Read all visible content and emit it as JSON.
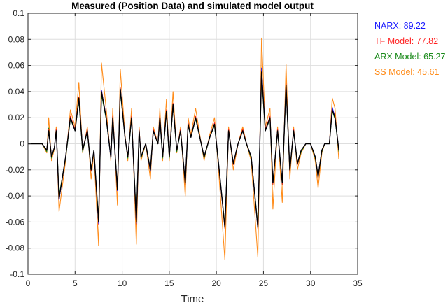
{
  "chart_data": {
    "type": "line",
    "title": "Measured (Position Data) and simulated model output",
    "xlabel": "Time",
    "ylabel": "",
    "xlim": [
      0,
      35
    ],
    "ylim": [
      -0.1,
      0.1
    ],
    "xticks": [
      "0",
      "5",
      "10",
      "15",
      "20",
      "25",
      "30",
      "35"
    ],
    "yticks": [
      "0.1",
      "0.08",
      "0.06",
      "0.04",
      "0.02",
      "0",
      "-0.02",
      "-0.04",
      "-0.06",
      "-0.08",
      "-0.1"
    ],
    "grid": true,
    "legend_placement": "outside-right",
    "t": [
      0,
      1.5,
      2,
      2.2,
      2.5,
      2.8,
      3,
      3.3,
      4,
      4.5,
      5,
      5.4,
      5.8,
      6.3,
      6.7,
      7,
      7.5,
      7.8,
      8.3,
      8.8,
      9,
      9.5,
      9.8,
      10.3,
      10.6,
      11,
      11.5,
      11.8,
      12,
      12.5,
      13,
      13.3,
      13.8,
      14,
      14.3,
      14.7,
      15,
      15.4,
      15.8,
      16.2,
      16.7,
      17,
      17.3,
      17.8,
      18.3,
      18.7,
      19.3,
      19.8,
      20.3,
      20.9,
      21.3,
      21.8,
      22.3,
      22.8,
      23.2,
      23.7,
      24.4,
      24.8,
      25.2,
      25.7,
      26,
      26.5,
      27,
      27.4,
      27.8,
      28.2,
      28.6,
      29,
      29.5,
      30,
      30.5,
      30.8,
      31.2,
      31.5,
      32,
      32.3,
      32.6,
      33
    ],
    "series": [
      {
        "name": "SS Model",
        "legend": "SS Model: 45.61",
        "color": "#ff8c1a",
        "values": [
          0,
          0,
          -0.007,
          0.02,
          -0.013,
          -0.004,
          0.013,
          -0.052,
          -0.013,
          0.026,
          0.013,
          0.047,
          -0.007,
          0.013,
          -0.027,
          -0.007,
          -0.078,
          0.062,
          0.027,
          -0.013,
          0.027,
          -0.047,
          0.057,
          0.007,
          -0.013,
          0.027,
          -0.077,
          0.013,
          -0.013,
          0,
          -0.027,
          0.013,
          0,
          0.027,
          -0.013,
          0.034,
          -0.013,
          0.04,
          -0.007,
          0.013,
          -0.04,
          0.02,
          0.007,
          0.027,
          0.004,
          -0.013,
          0.007,
          0.02,
          -0.027,
          -0.089,
          0.013,
          -0.02,
          0,
          0.013,
          0,
          -0.013,
          -0.087,
          0.081,
          0.013,
          0.027,
          -0.05,
          0.013,
          -0.045,
          0.061,
          -0.027,
          0.013,
          -0.02,
          -0.007,
          0,
          0,
          -0.013,
          -0.034,
          -0.007,
          0,
          0,
          0.035,
          0.027,
          -0.012
        ]
      },
      {
        "name": "ARX Model",
        "legend": "ARX Model: 65.27",
        "color": "#1a8a1a",
        "values": [
          0,
          0,
          -0.006,
          0.012,
          -0.011,
          -0.003,
          0.011,
          -0.04,
          -0.011,
          0.019,
          0.01,
          0.033,
          -0.006,
          0.01,
          -0.021,
          -0.006,
          -0.058,
          0.038,
          0.019,
          -0.011,
          0.019,
          -0.034,
          0.04,
          0.005,
          -0.011,
          0.019,
          -0.058,
          0.01,
          -0.011,
          0,
          -0.021,
          0.01,
          0,
          0.019,
          -0.011,
          0.024,
          -0.011,
          0.029,
          -0.006,
          0.01,
          -0.031,
          0.014,
          0.005,
          0.019,
          0.003,
          -0.011,
          0.005,
          0.014,
          -0.021,
          -0.062,
          0.01,
          -0.016,
          0,
          0.01,
          0,
          -0.011,
          -0.062,
          0.052,
          0.01,
          0.019,
          -0.031,
          0.01,
          -0.031,
          0.043,
          -0.021,
          0.01,
          -0.016,
          -0.006,
          0,
          0,
          -0.011,
          -0.026,
          -0.006,
          0,
          0,
          0.025,
          0.019,
          -0.006
        ]
      },
      {
        "name": "TF Model",
        "legend": "TF Model: 77.82",
        "color": "#ff2020",
        "values": [
          0,
          0,
          -0.005,
          0.011,
          -0.01,
          -0.003,
          0.011,
          -0.043,
          -0.01,
          0.021,
          0.011,
          0.036,
          -0.005,
          0.011,
          -0.021,
          -0.005,
          -0.062,
          0.041,
          0.021,
          -0.01,
          0.021,
          -0.036,
          0.043,
          0.005,
          -0.01,
          0.021,
          -0.062,
          0.011,
          -0.01,
          0,
          -0.021,
          0.011,
          0,
          0.021,
          -0.01,
          0.026,
          -0.01,
          0.031,
          -0.005,
          0.011,
          -0.031,
          0.016,
          0.005,
          0.021,
          0.003,
          -0.01,
          0.005,
          0.016,
          -0.021,
          -0.065,
          0.011,
          -0.016,
          0,
          0.011,
          0,
          -0.01,
          -0.065,
          0.056,
          0.011,
          0.021,
          -0.031,
          0.011,
          -0.031,
          0.046,
          -0.021,
          0.011,
          -0.016,
          -0.005,
          0,
          0,
          -0.01,
          -0.026,
          -0.005,
          0,
          0,
          0.027,
          0.021,
          -0.005
        ]
      },
      {
        "name": "NARX",
        "legend": "NARX: 89.22",
        "color": "#1a1aff",
        "values": [
          0,
          0,
          -0.005,
          0.01,
          -0.01,
          -0.003,
          0.01,
          -0.043,
          -0.01,
          0.02,
          0.01,
          0.035,
          -0.005,
          0.01,
          -0.02,
          -0.005,
          -0.061,
          0.041,
          0.02,
          -0.011,
          0.02,
          -0.036,
          0.042,
          0.005,
          -0.01,
          0.02,
          -0.061,
          0.01,
          -0.01,
          0,
          -0.021,
          0.01,
          0,
          0.02,
          -0.01,
          0.025,
          -0.01,
          0.03,
          -0.005,
          0.01,
          -0.03,
          0.015,
          0.005,
          0.02,
          0.003,
          -0.01,
          0.005,
          0.015,
          -0.02,
          -0.064,
          0.01,
          -0.015,
          0,
          0.01,
          0,
          -0.01,
          -0.064,
          0.058,
          0.01,
          0.02,
          -0.03,
          0.01,
          -0.03,
          0.045,
          -0.02,
          0.01,
          -0.015,
          -0.005,
          0,
          0,
          -0.01,
          -0.025,
          -0.005,
          0,
          0,
          0.028,
          0.02,
          -0.005
        ]
      },
      {
        "name": "Measured",
        "legend": "",
        "color": "#000000",
        "values": [
          0,
          0,
          -0.005,
          0.01,
          -0.01,
          -0.003,
          0.01,
          -0.042,
          -0.01,
          0.02,
          0.01,
          0.035,
          -0.005,
          0.01,
          -0.02,
          -0.005,
          -0.06,
          0.04,
          0.02,
          -0.01,
          0.02,
          -0.035,
          0.042,
          0.005,
          -0.01,
          0.02,
          -0.06,
          0.01,
          -0.01,
          0,
          -0.02,
          0.01,
          0,
          0.02,
          -0.01,
          0.025,
          -0.01,
          0.03,
          -0.005,
          0.01,
          -0.03,
          0.015,
          0.005,
          0.02,
          0.003,
          -0.01,
          0.005,
          0.015,
          -0.02,
          -0.064,
          0.01,
          -0.015,
          0,
          0.01,
          0,
          -0.01,
          -0.064,
          0.055,
          0.01,
          0.02,
          -0.03,
          0.01,
          -0.03,
          0.045,
          -0.02,
          0.01,
          -0.015,
          -0.005,
          0,
          0,
          -0.01,
          -0.025,
          -0.005,
          0,
          0,
          0.026,
          0.02,
          -0.005
        ]
      }
    ],
    "legend_order": [
      "NARX",
      "TF Model",
      "ARX Model",
      "SS Model"
    ]
  }
}
